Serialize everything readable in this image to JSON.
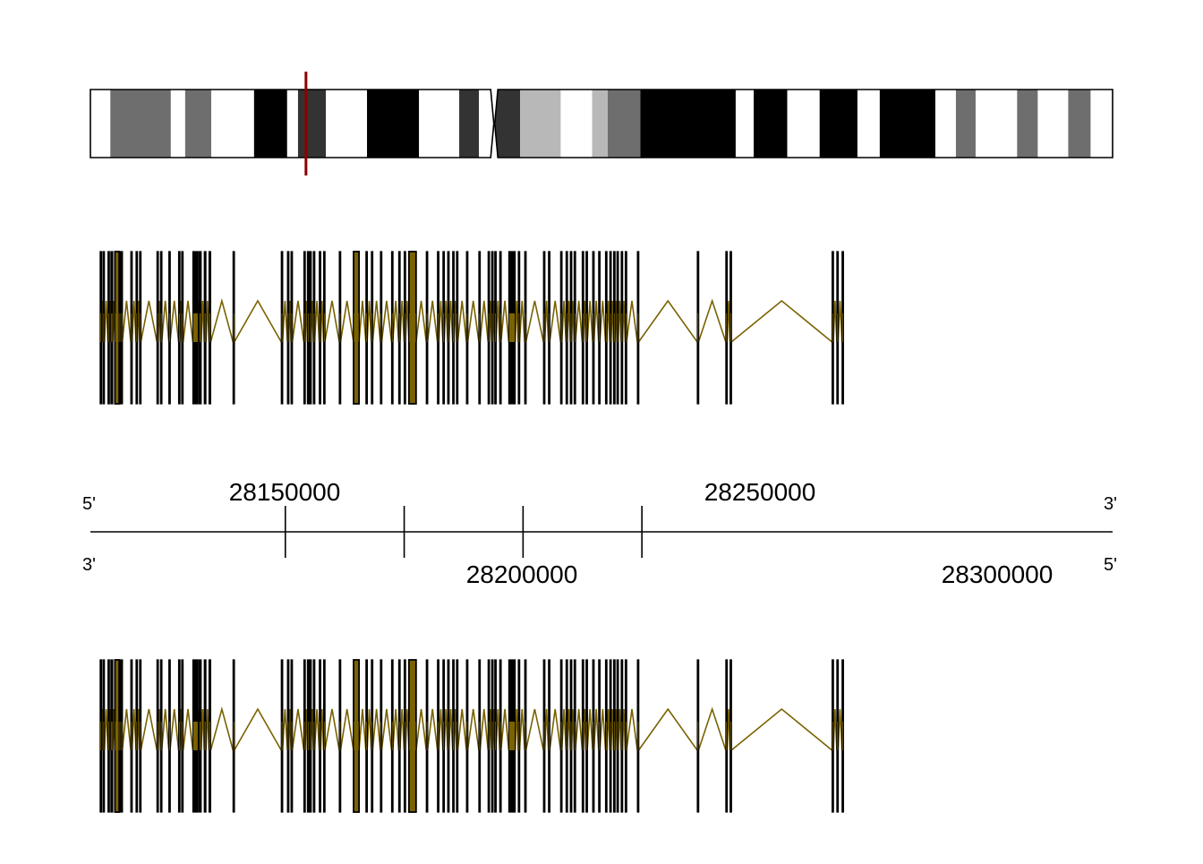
{
  "colors": {
    "intron": "#7a6200",
    "exon_edge": "#000000",
    "highlight_exon_fill": "#7a6200",
    "position_marker": "#8b0000",
    "band_gneg": "#ffffff",
    "band_gpos25": "#b8b8b8",
    "band_gpos50": "#6e6e6e",
    "band_gpos75": "#333333",
    "band_gpos100": "#000000"
  },
  "ideogram": {
    "bands": [
      {
        "start": 0.0,
        "end": 0.0195,
        "stain": "gneg"
      },
      {
        "start": 0.0195,
        "end": 0.0787,
        "stain": "gpos50"
      },
      {
        "start": 0.0787,
        "end": 0.0927,
        "stain": "gneg"
      },
      {
        "start": 0.0927,
        "end": 0.1182,
        "stain": "gpos50"
      },
      {
        "start": 0.1182,
        "end": 0.1601,
        "stain": "gneg"
      },
      {
        "start": 0.1601,
        "end": 0.1925,
        "stain": "gpos100"
      },
      {
        "start": 0.1925,
        "end": 0.2031,
        "stain": "gneg"
      },
      {
        "start": 0.2031,
        "end": 0.2303,
        "stain": "gpos75"
      },
      {
        "start": 0.2303,
        "end": 0.2706,
        "stain": "gneg"
      },
      {
        "start": 0.2706,
        "end": 0.3215,
        "stain": "gpos100"
      },
      {
        "start": 0.3215,
        "end": 0.3608,
        "stain": "gneg"
      },
      {
        "start": 0.3608,
        "end": 0.3801,
        "stain": "gpos75"
      },
      {
        "start": 0.3801,
        "end": 0.3951,
        "stain": "gneg"
      },
      {
        "start": 0.3951,
        "end": 0.4204,
        "stain": "gpos75"
      },
      {
        "start": 0.4204,
        "end": 0.4601,
        "stain": "gpos25"
      },
      {
        "start": 0.4601,
        "end": 0.4908,
        "stain": "gneg"
      },
      {
        "start": 0.4908,
        "end": 0.5061,
        "stain": "gpos25"
      },
      {
        "start": 0.5061,
        "end": 0.5381,
        "stain": "gpos50"
      },
      {
        "start": 0.5381,
        "end": 0.6313,
        "stain": "gpos100"
      },
      {
        "start": 0.6313,
        "end": 0.6489,
        "stain": "gneg"
      },
      {
        "start": 0.6489,
        "end": 0.6817,
        "stain": "gpos100"
      },
      {
        "start": 0.6817,
        "end": 0.7134,
        "stain": "gneg"
      },
      {
        "start": 0.7134,
        "end": 0.7504,
        "stain": "gpos100"
      },
      {
        "start": 0.7504,
        "end": 0.7722,
        "stain": "gneg"
      },
      {
        "start": 0.7722,
        "end": 0.8266,
        "stain": "gpos100"
      },
      {
        "start": 0.8266,
        "end": 0.8467,
        "stain": "gneg"
      },
      {
        "start": 0.8467,
        "end": 0.866,
        "stain": "gpos50"
      },
      {
        "start": 0.866,
        "end": 0.9066,
        "stain": "gneg"
      },
      {
        "start": 0.9066,
        "end": 0.9268,
        "stain": "gpos50"
      },
      {
        "start": 0.9268,
        "end": 0.9566,
        "stain": "gneg"
      },
      {
        "start": 0.9566,
        "end": 0.9785,
        "stain": "gpos50"
      },
      {
        "start": 0.9785,
        "end": 1.0,
        "stain": "gneg"
      }
    ],
    "centromere": 0.3951,
    "marker_position": 0.2109
  },
  "axis": {
    "range": [
      28068000,
      28498000
    ],
    "strand_labels": {
      "top_left": "5'",
      "top_right": "3'",
      "bottom_left": "3'",
      "bottom_right": "5'"
    },
    "ticks": [
      {
        "value": 28150000,
        "label": "28150000",
        "side": "above"
      },
      {
        "value": 28200000,
        "label": "28200000",
        "side": "below"
      },
      {
        "value": 28250000,
        "label": "28250000",
        "side": "above"
      },
      {
        "value": 28300000,
        "label": "28300000",
        "side": "below"
      }
    ]
  },
  "gene_model": {
    "exons": [
      {
        "start": 28072100,
        "end": 28072700
      },
      {
        "start": 28073300,
        "end": 28073900
      },
      {
        "start": 28075400,
        "end": 28076000
      },
      {
        "start": 28076600,
        "end": 28077400
      },
      {
        "start": 28078300,
        "end": 28080100,
        "highlight": true
      },
      {
        "start": 28080100,
        "end": 28080700
      },
      {
        "start": 28080900,
        "end": 28081400
      },
      {
        "start": 28085000,
        "end": 28085500
      },
      {
        "start": 28087200,
        "end": 28087700
      },
      {
        "start": 28088700,
        "end": 28089200
      },
      {
        "start": 28096000,
        "end": 28096500
      },
      {
        "start": 28097500,
        "end": 28098000
      },
      {
        "start": 28101000,
        "end": 28101500
      },
      {
        "start": 28105100,
        "end": 28105600
      },
      {
        "start": 28106400,
        "end": 28107000
      },
      {
        "start": 28111100,
        "end": 28113300
      },
      {
        "start": 28113800,
        "end": 28114600
      },
      {
        "start": 28115900,
        "end": 28116600
      },
      {
        "start": 28117900,
        "end": 28118600
      },
      {
        "start": 28128000,
        "end": 28128500
      },
      {
        "start": 28148300,
        "end": 28148800
      },
      {
        "start": 28150900,
        "end": 28151400
      },
      {
        "start": 28152400,
        "end": 28152900
      },
      {
        "start": 28157800,
        "end": 28158300
      },
      {
        "start": 28159300,
        "end": 28159800
      },
      {
        "start": 28160300,
        "end": 28160800
      },
      {
        "start": 28161800,
        "end": 28162300
      },
      {
        "start": 28164300,
        "end": 28164800
      },
      {
        "start": 28166100,
        "end": 28166600
      },
      {
        "start": 28172700,
        "end": 28173200
      },
      {
        "start": 28178700,
        "end": 28181000,
        "highlight": true
      },
      {
        "start": 28183900,
        "end": 28184400
      },
      {
        "start": 28186200,
        "end": 28186700
      },
      {
        "start": 28190000,
        "end": 28190500
      },
      {
        "start": 28194700,
        "end": 28195200
      },
      {
        "start": 28197700,
        "end": 28198200
      },
      {
        "start": 28200000,
        "end": 28200500
      },
      {
        "start": 28202000,
        "end": 28205000,
        "highlight": true
      },
      {
        "start": 28209300,
        "end": 28209800
      },
      {
        "start": 28214000,
        "end": 28214500
      },
      {
        "start": 28216300,
        "end": 28216800
      },
      {
        "start": 28218300,
        "end": 28218800
      },
      {
        "start": 28220400,
        "end": 28220900
      },
      {
        "start": 28222000,
        "end": 28222500
      },
      {
        "start": 28226200,
        "end": 28226700
      },
      {
        "start": 28231400,
        "end": 28231900
      },
      {
        "start": 28235300,
        "end": 28235800
      },
      {
        "start": 28236800,
        "end": 28237300
      },
      {
        "start": 28238100,
        "end": 28238600
      },
      {
        "start": 28240200,
        "end": 28240700
      },
      {
        "start": 28244000,
        "end": 28246700
      },
      {
        "start": 28248000,
        "end": 28248500
      },
      {
        "start": 28250700,
        "end": 28251200
      },
      {
        "start": 28258600,
        "end": 28259100
      },
      {
        "start": 28260700,
        "end": 28261200
      },
      {
        "start": 28265800,
        "end": 28266300
      },
      {
        "start": 28268100,
        "end": 28268600
      },
      {
        "start": 28269900,
        "end": 28270400
      },
      {
        "start": 28271500,
        "end": 28272000
      },
      {
        "start": 28274900,
        "end": 28275400
      },
      {
        "start": 28276500,
        "end": 28277000
      },
      {
        "start": 28279300,
        "end": 28279800
      },
      {
        "start": 28281800,
        "end": 28282300
      },
      {
        "start": 28284700,
        "end": 28285200
      },
      {
        "start": 28286500,
        "end": 28287000
      },
      {
        "start": 28288100,
        "end": 28288600
      },
      {
        "start": 28289500,
        "end": 28290000
      },
      {
        "start": 28291300,
        "end": 28291800
      },
      {
        "start": 28293000,
        "end": 28293500
      },
      {
        "start": 28298100,
        "end": 28298600
      },
      {
        "start": 28323300,
        "end": 28323800
      },
      {
        "start": 28335300,
        "end": 28335800
      },
      {
        "start": 28337100,
        "end": 28337600
      },
      {
        "start": 28380000,
        "end": 28380500
      },
      {
        "start": 28382000,
        "end": 28382500
      },
      {
        "start": 28384200,
        "end": 28384700
      }
    ]
  }
}
